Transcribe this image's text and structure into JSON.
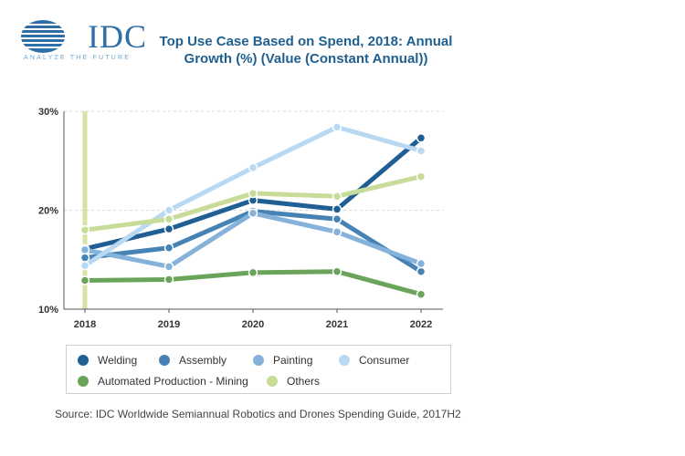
{
  "header": {
    "logo_text": "IDC",
    "logo_tagline": "ANALYZE THE FUTURE",
    "title_line1": "Top Use Case Based on Spend, 2018: Annual",
    "title_line2": "Growth (%) (Value (Constant Annual))"
  },
  "source": "Source: IDC Worldwide Semiannual Robotics and Drones Spending Guide, 2017H2",
  "chart_data": {
    "type": "line",
    "title": "Top Use Case Based on Spend, 2018: Annual Growth (%) (Value (Constant Annual))",
    "xlabel": "",
    "ylabel": "",
    "categories": [
      "2018",
      "2019",
      "2020",
      "2021",
      "2022"
    ],
    "ylim": [
      10,
      30
    ],
    "yticks": [
      "10%",
      "20%",
      "30%"
    ],
    "ytick_values": [
      10,
      20,
      30
    ],
    "grid": true,
    "highlight_category": "2018",
    "highlight_color": "#d4e4a4",
    "legend_position": "bottom",
    "series": [
      {
        "name": "Welding",
        "color": "#1f5f94",
        "values": [
          16.1,
          18.1,
          21.0,
          20.1,
          27.3
        ]
      },
      {
        "name": "Assembly",
        "color": "#4682b4",
        "values": [
          15.2,
          16.2,
          19.9,
          19.1,
          13.8
        ]
      },
      {
        "name": "Painting",
        "color": "#85b2da",
        "values": [
          16.0,
          14.3,
          19.7,
          17.8,
          14.6
        ]
      },
      {
        "name": "Consumer",
        "color": "#b9d9f2",
        "values": [
          14.4,
          20.0,
          24.3,
          28.4,
          26.0
        ]
      },
      {
        "name": "Automated Production - Mining",
        "color": "#6aa35a",
        "values": [
          12.9,
          13.0,
          13.7,
          13.8,
          11.5
        ]
      },
      {
        "name": "Others",
        "color": "#c8dc9a",
        "values": [
          18.0,
          19.1,
          21.7,
          21.4,
          23.4
        ]
      }
    ]
  }
}
